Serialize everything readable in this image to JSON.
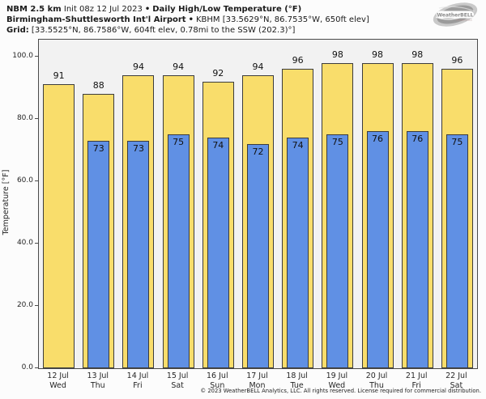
{
  "header": {
    "model": "NBM 2.5 km",
    "init": "Init 08z 12 Jul 2023",
    "separator": "•",
    "product": "Daily High/Low Temperature (°F)",
    "station": "Birmingham-Shuttlesworth Int'l Airport",
    "station_info": "KBHM [33.5629°N, 86.7535°W, 650ft elev]",
    "grid_label": "Grid:",
    "grid_info": "[33.5525°N, 86.7586°W, 604ft elev, 0.78mi to the SSW (202.3)°]"
  },
  "logo": {
    "name": "WeatherBELL",
    "sub": "Analytics LLC"
  },
  "chart_data": {
    "type": "bar",
    "title": "Daily High/Low Temperature (°F)",
    "categories": [
      {
        "date": "12 Jul",
        "day": "Wed"
      },
      {
        "date": "13 Jul",
        "day": "Thu"
      },
      {
        "date": "14 Jul",
        "day": "Fri"
      },
      {
        "date": "15 Jul",
        "day": "Sat"
      },
      {
        "date": "16 Jul",
        "day": "Sun"
      },
      {
        "date": "17 Jul",
        "day": "Mon"
      },
      {
        "date": "18 Jul",
        "day": "Tue"
      },
      {
        "date": "19 Jul",
        "day": "Wed"
      },
      {
        "date": "20 Jul",
        "day": "Thu"
      },
      {
        "date": "21 Jul",
        "day": "Fri"
      },
      {
        "date": "22 Jul",
        "day": "Sat"
      }
    ],
    "series": [
      {
        "name": "High",
        "color": "#f9dd6b",
        "values": [
          91,
          88,
          94,
          94,
          92,
          94,
          96,
          98,
          98,
          98,
          96
        ]
      },
      {
        "name": "Low",
        "color": "#6090e4",
        "values": [
          null,
          73,
          73,
          75,
          74,
          72,
          74,
          75,
          76,
          76,
          75
        ]
      }
    ],
    "ylabel": "Temperature [°F]",
    "yticks": [
      0,
      20,
      40,
      60,
      80,
      100
    ],
    "ytick_labels": [
      "0.0",
      "20.0",
      "40.0",
      "60.0",
      "80.0",
      "100.0"
    ],
    "ylim": [
      0,
      105.4
    ],
    "grid": false,
    "legend": "none",
    "bar_edge_color": "#3c3c3c",
    "plot_bg": "#f2f2f2"
  },
  "footer": {
    "copyright": "© 2023 WeatherBELL Analytics, LLC. All rights reserved. License required for commercial distribution."
  }
}
